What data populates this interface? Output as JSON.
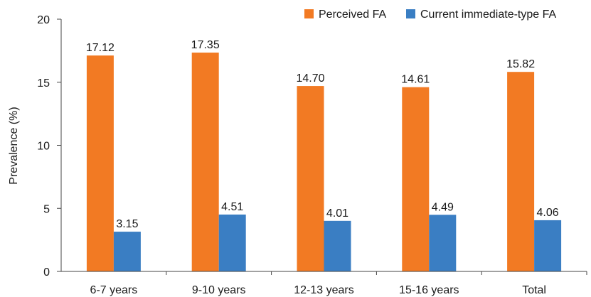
{
  "chart_data": {
    "type": "bar",
    "title": "",
    "xlabel": "",
    "ylabel": "Prevalence (%)",
    "ylim": [
      0,
      20
    ],
    "yticks": [
      "0",
      "5",
      "10",
      "15",
      "20"
    ],
    "grid": false,
    "legend_position": "top-right",
    "categories": [
      "6-7 years",
      "9-10 years",
      "12-13 years",
      "15-16 years",
      "Total"
    ],
    "series": [
      {
        "name": "Perceived FA",
        "color": "#F27A23",
        "values": [
          17.12,
          17.35,
          14.7,
          14.61,
          15.82
        ],
        "labels": [
          "17.12",
          "17.35",
          "14.70",
          "14.61",
          "15.82"
        ]
      },
      {
        "name": "Current immediate-type FA",
        "color": "#3A7EC3",
        "values": [
          3.15,
          4.51,
          4.01,
          4.49,
          4.06
        ],
        "labels": [
          "3.15",
          "4.51",
          "4.01",
          "4.49",
          "4.06"
        ]
      }
    ]
  }
}
